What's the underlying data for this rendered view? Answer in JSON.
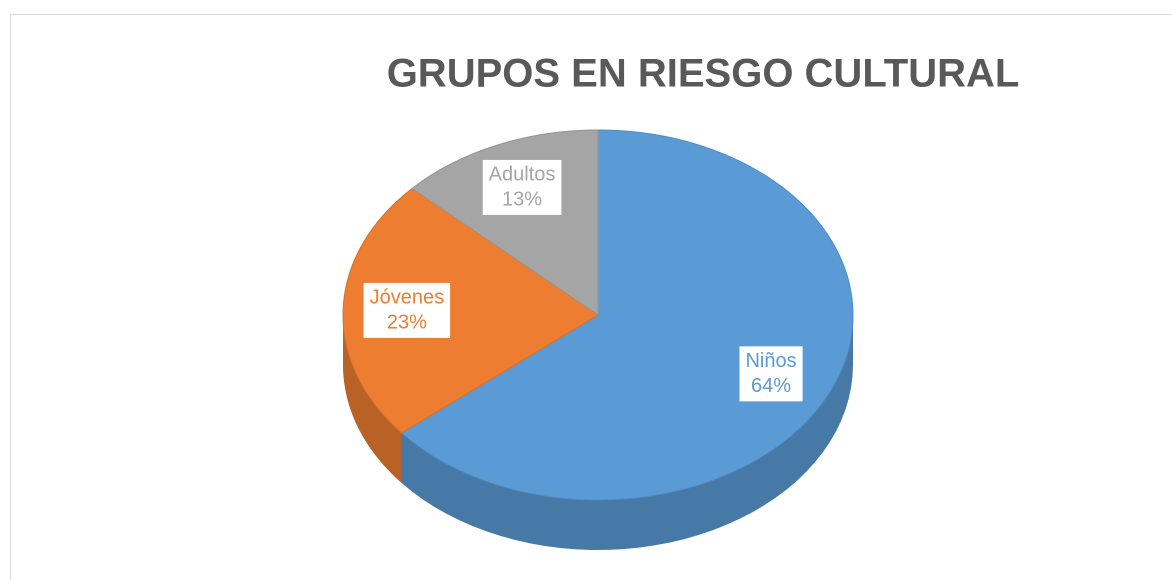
{
  "chart_data": {
    "type": "pie",
    "title": "GRUPOS EN RIESGO CULTURAL",
    "categories": [
      "Niños",
      "Jóvenes",
      "Adultos"
    ],
    "values": [
      64,
      23,
      13
    ],
    "value_labels": [
      "64%",
      "23%",
      "13%"
    ],
    "colors": [
      "#5b9bd5",
      "#ed7d31",
      "#a5a5a5"
    ]
  }
}
